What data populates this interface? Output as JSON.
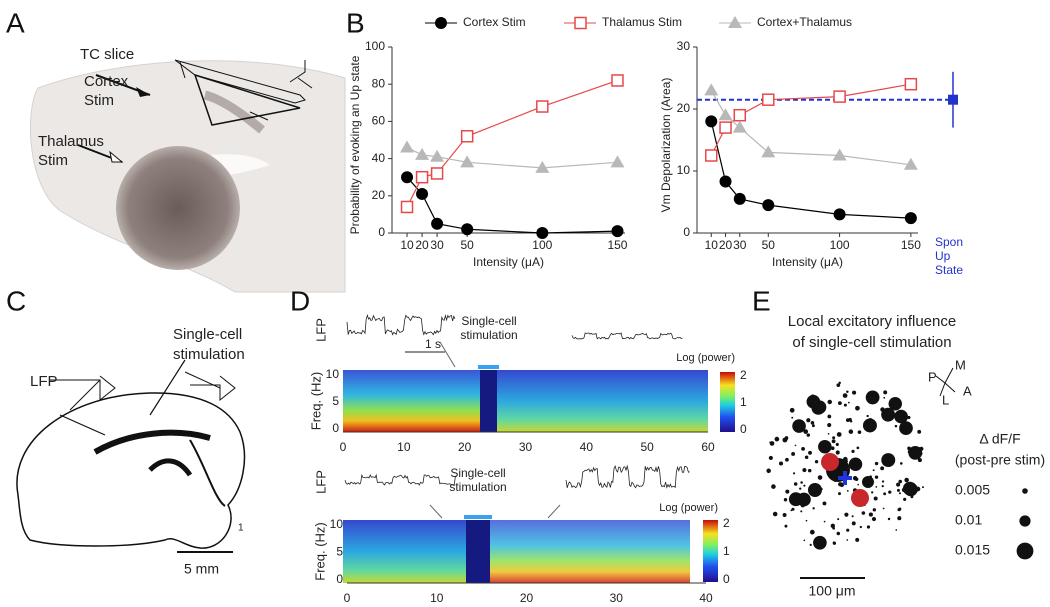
{
  "panel_labels": [
    "A",
    "B",
    "C",
    "D",
    "E"
  ],
  "chart_data": [
    {
      "type": "line",
      "y_label": "Probability of evoking an Up state",
      "x_label": "Intensity (μA)",
      "x": [
        10,
        20,
        30,
        50,
        100,
        150
      ],
      "xlim": [
        0,
        155
      ],
      "ylim": [
        0,
        100
      ],
      "xticks": [
        10,
        20,
        30,
        50,
        100,
        150
      ],
      "yticks": [
        0,
        20,
        40,
        60,
        80,
        100
      ],
      "legend": "top",
      "series": [
        {
          "name": "Cortex Stim",
          "color": "#000000",
          "marker": "circle",
          "values": [
            30,
            21,
            5,
            2,
            0,
            1
          ]
        },
        {
          "name": "Thalamus Stim",
          "color": "#e8474a",
          "marker": "square",
          "values": [
            14,
            30,
            32,
            52,
            68,
            82
          ]
        },
        {
          "name": "Cortex+Thalamus",
          "color": "#b8b8b8",
          "marker": "triangle",
          "values": [
            46,
            42,
            41,
            38,
            35,
            38
          ]
        }
      ]
    },
    {
      "type": "line",
      "y_label": "Vm Depolarization (Area)",
      "x_label": "Intensity (μA)",
      "x": [
        10,
        20,
        30,
        50,
        100,
        150
      ],
      "xlim": [
        0,
        155
      ],
      "ylim": [
        0,
        30
      ],
      "xticks": [
        10,
        20,
        30,
        50,
        100,
        150
      ],
      "yticks": [
        0,
        10,
        20,
        30
      ],
      "series": [
        {
          "color": "#000000",
          "marker": "circle",
          "values": [
            18,
            8.3,
            5.5,
            4.5,
            3,
            2.4
          ]
        },
        {
          "color": "#e8474a",
          "marker": "square",
          "values": [
            12.5,
            17,
            19,
            21.5,
            22,
            24
          ]
        },
        {
          "color": "#b8b8b8",
          "marker": "triangle",
          "values": [
            23,
            19,
            17,
            13,
            12.5,
            11
          ]
        }
      ],
      "reference_line": {
        "value": 21.5,
        "color": "#2233cc"
      },
      "reference_point": {
        "value": 21.5,
        "error": 4.5,
        "label": [
          "Spon",
          "Up",
          "State"
        ]
      }
    }
  ],
  "panel_a": {
    "title": "TC slice",
    "cortex_label": [
      "Cortex",
      "Stim"
    ],
    "thalamus_label": [
      "Thalamus",
      "Stim"
    ]
  },
  "panel_c": {
    "stim_label": [
      "Single-cell",
      "stimulation"
    ],
    "lfp": "LFP",
    "scale": "5 mm",
    "mark": "1"
  },
  "panel_d": {
    "top": {
      "lfp": "LFP",
      "time_scale": "1 s",
      "stim_label": [
        "Single-cell",
        "stimulation"
      ],
      "colorbar_title": "Log (power)",
      "y_label": "Freq. (Hz)",
      "y_ticks": [
        10,
        5,
        0
      ],
      "colorbar_ticks": [
        2,
        1,
        0
      ],
      "x_ticks": [
        0,
        10,
        20,
        30,
        40,
        50,
        60
      ]
    },
    "bottom": {
      "lfp": "LFP",
      "stim_label": [
        "Single-cell",
        "stimulation"
      ],
      "colorbar_title": "Log (power)",
      "y_label": "Freq. (Hz)",
      "y_ticks": [
        10,
        5,
        0
      ],
      "colorbar_ticks": [
        2,
        1,
        0
      ],
      "x_ticks": [
        0,
        10,
        20,
        30,
        40
      ]
    }
  },
  "panel_e": {
    "title": [
      "Local excitatory influence",
      "of single-cell stimulation"
    ],
    "compass": [
      "M",
      "P",
      "A",
      "L"
    ],
    "legend_title": "Δ dF/F",
    "legend_subtitle": "(post-pre stim)",
    "legend_sizes": [
      0.005,
      0.01,
      0.015
    ],
    "scale": "100 μm"
  }
}
